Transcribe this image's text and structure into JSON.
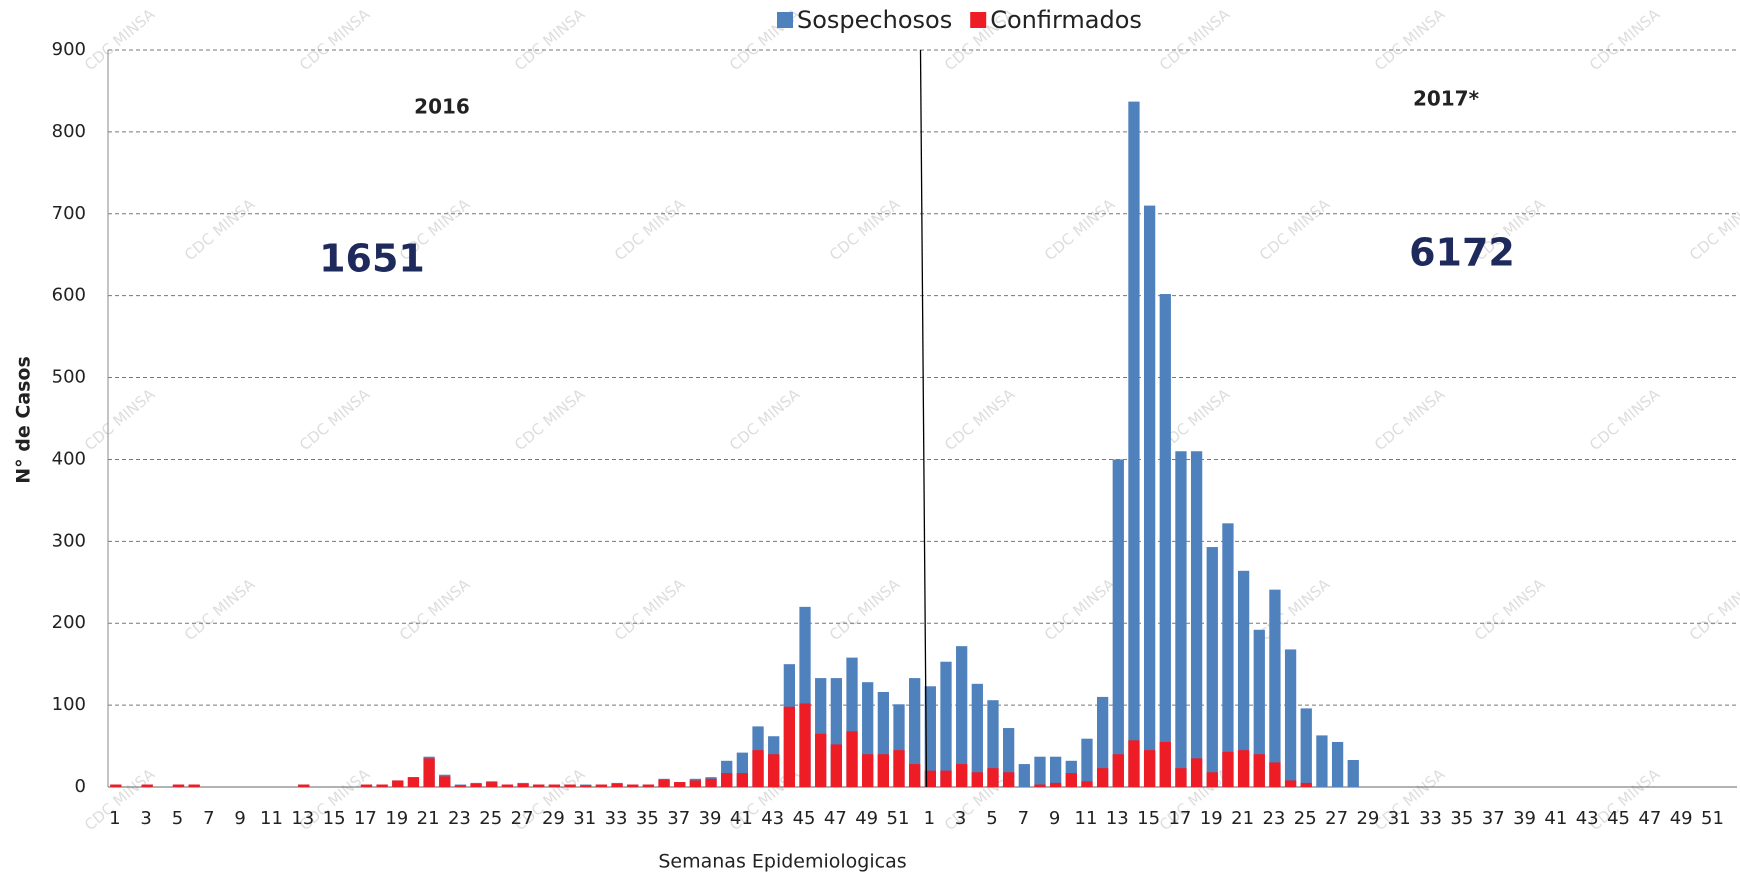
{
  "chart_data": {
    "type": "bar",
    "overlap": true,
    "x_label": "Semanas Epidemiologicas",
    "y_label": "N° de Casos",
    "watermark": "CDC MINSA",
    "annotations": [
      "2016",
      "2017*",
      "1651",
      "6172"
    ],
    "categories": [
      "1",
      null,
      "3",
      null,
      "5",
      null,
      "7",
      null,
      "9",
      null,
      "11",
      null,
      "13",
      null,
      "15",
      null,
      "17",
      null,
      "19",
      null,
      "21",
      null,
      "23",
      null,
      "25",
      null,
      "27",
      null,
      "29",
      null,
      "31",
      null,
      "33",
      null,
      "35",
      null,
      "37",
      null,
      "39",
      null,
      "41",
      null,
      "43",
      null,
      "45",
      null,
      "47",
      null,
      "49",
      null,
      "51",
      null,
      "1",
      null,
      "3",
      null,
      "5",
      null,
      "7",
      null,
      "9",
      null,
      "11",
      null,
      "13",
      null,
      "15",
      null,
      "17",
      null,
      "19",
      null,
      "21",
      null,
      "23",
      null,
      "25",
      null,
      "27",
      null,
      "29",
      null,
      "31",
      null,
      "33",
      null,
      "35",
      null,
      "37",
      null,
      "39",
      null,
      "41",
      null,
      "43",
      null,
      "45",
      null,
      "47",
      null,
      "49",
      null,
      "51",
      null
    ],
    "series": [
      {
        "name": "Sospechosos",
        "color": "#4f81bd",
        "values": [
          3,
          0,
          3,
          0,
          3,
          3,
          0,
          0,
          0,
          0,
          0,
          0,
          3,
          0,
          0,
          0,
          3,
          3,
          8,
          12,
          37,
          15,
          3,
          5,
          7,
          3,
          5,
          3,
          3,
          3,
          3,
          3,
          5,
          3,
          3,
          10,
          6,
          10,
          12,
          32,
          42,
          74,
          62,
          150,
          220,
          133,
          133,
          158,
          128,
          116,
          101,
          133,
          123,
          153,
          172,
          126,
          106,
          72,
          28,
          37,
          37,
          32,
          59,
          110,
          400,
          837,
          710,
          602,
          410,
          410,
          293,
          322,
          264,
          192,
          241,
          168,
          96,
          63,
          55,
          33,
          0,
          0,
          0,
          0,
          0,
          0,
          0,
          0,
          0,
          0,
          0,
          0,
          0,
          0,
          0,
          0,
          0,
          0,
          0,
          0,
          0,
          0,
          0,
          0
        ]
      },
      {
        "name": "Confirmados",
        "color": "#ee1c25",
        "values": [
          3,
          0,
          3,
          0,
          3,
          3,
          0,
          0,
          0,
          0,
          0,
          0,
          3,
          0,
          0,
          0,
          3,
          3,
          8,
          12,
          35,
          13,
          2,
          4,
          6,
          3,
          4,
          3,
          3,
          3,
          2,
          3,
          4,
          3,
          3,
          9,
          6,
          8,
          10,
          17,
          17,
          45,
          40,
          98,
          102,
          65,
          52,
          68,
          40,
          40,
          45,
          28,
          20,
          20,
          28,
          18,
          23,
          18,
          0,
          3,
          5,
          17,
          7,
          23,
          40,
          57,
          45,
          55,
          23,
          35,
          18,
          43,
          45,
          40,
          30,
          8,
          5,
          0,
          0,
          0,
          0,
          0,
          0,
          0,
          0,
          0,
          0,
          0,
          0,
          0,
          0,
          0,
          0,
          0,
          0,
          0,
          0,
          0,
          0,
          0,
          0,
          0,
          0,
          0
        ]
      }
    ],
    "ylim": [
      0,
      900
    ],
    "yticks": [
      0,
      100,
      200,
      300,
      400,
      500,
      600,
      700,
      800,
      900
    ],
    "grid": true
  }
}
